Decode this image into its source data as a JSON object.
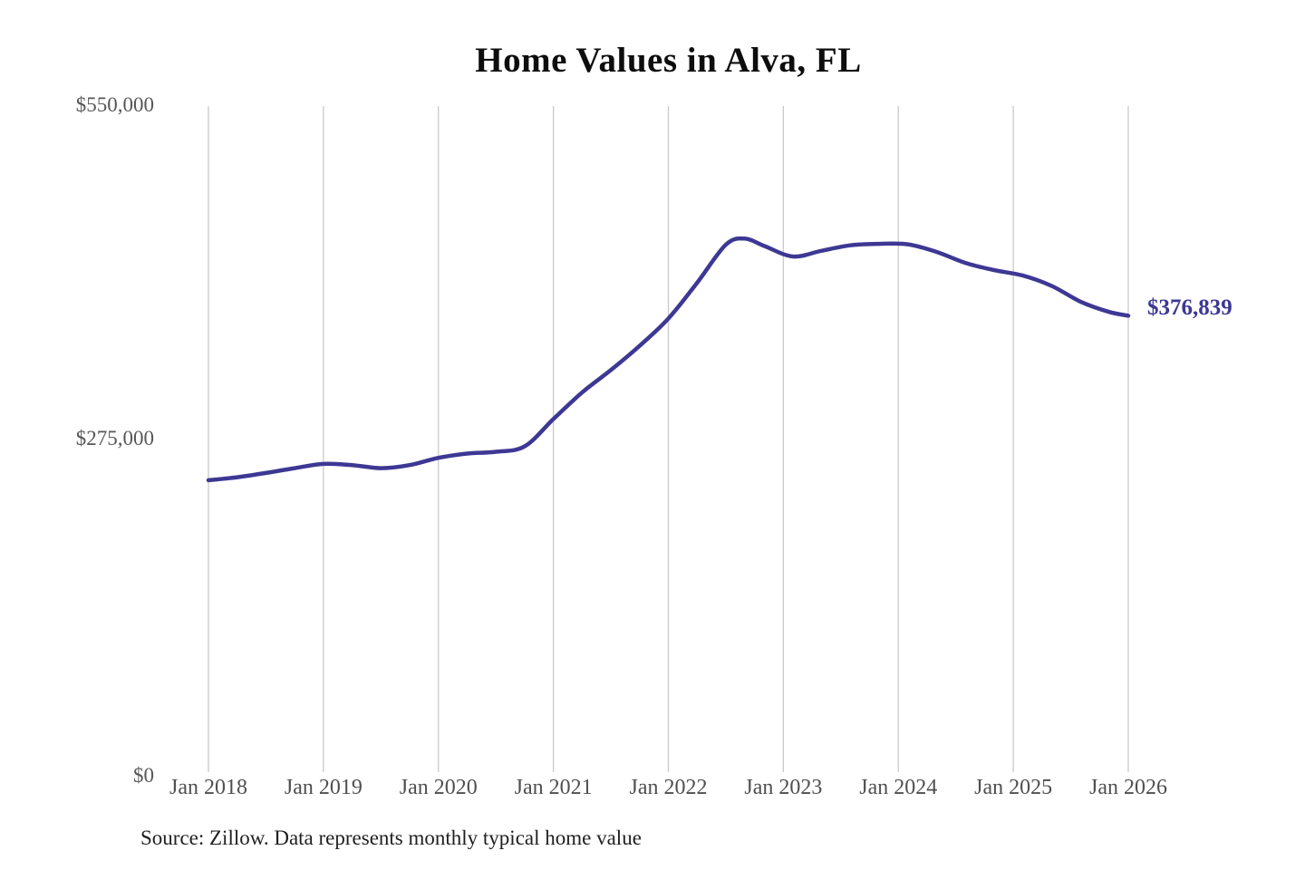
{
  "title": "Home Values in Alva, FL",
  "source_note": "Source: Zillow. Data represents monthly typical home value",
  "latest_value_label": "$376,839",
  "colors": {
    "line": "#3d3894",
    "grid": "#c9c9c9",
    "y_axis_text": "#575757",
    "x_axis_text": "#4f4f4f",
    "title_text": "#0d0d0d",
    "source_text": "#1f1f1f",
    "latest_value_text": "#3d3894"
  },
  "y_axis": {
    "ticks": [
      {
        "label": "$550,000",
        "value": 550000
      },
      {
        "label": "$275,000",
        "value": 275000
      },
      {
        "label": "$0",
        "value": 0
      }
    ]
  },
  "x_axis": {
    "ticks": [
      {
        "label": "Jan 2018",
        "month": 0
      },
      {
        "label": "Jan 2019",
        "month": 12
      },
      {
        "label": "Jan 2020",
        "month": 24
      },
      {
        "label": "Jan 2021",
        "month": 36
      },
      {
        "label": "Jan 2022",
        "month": 48
      },
      {
        "label": "Jan 2023",
        "month": 60
      },
      {
        "label": "Jan 2024",
        "month": 72
      },
      {
        "label": "Jan 2025",
        "month": 84
      },
      {
        "label": "Jan 2026",
        "month": 96
      }
    ]
  },
  "chart_data": {
    "type": "line",
    "title": "Home Values in Alva, FL",
    "series_name": "Typical home value (USD)",
    "x_unit": "months since Jan 2018",
    "xlim_months": [
      0,
      96
    ],
    "ylim": [
      0,
      550000
    ],
    "grid": "vertical-yearly-only",
    "legend": "none",
    "latest_value": 376839,
    "points": [
      [
        0,
        241000
      ],
      [
        3,
        243500
      ],
      [
        6,
        247000
      ],
      [
        9,
        251000
      ],
      [
        12,
        254500
      ],
      [
        15,
        253500
      ],
      [
        18,
        251000
      ],
      [
        21,
        253500
      ],
      [
        24,
        259500
      ],
      [
        27,
        263000
      ],
      [
        30,
        264500
      ],
      [
        33,
        269000
      ],
      [
        36,
        291500
      ],
      [
        39,
        313500
      ],
      [
        42,
        332000
      ],
      [
        45,
        352000
      ],
      [
        48,
        374500
      ],
      [
        51,
        404000
      ],
      [
        54,
        435500
      ],
      [
        56,
        440500
      ],
      [
        58,
        434500
      ],
      [
        61,
        425800
      ],
      [
        64,
        430500
      ],
      [
        67,
        435000
      ],
      [
        70,
        436200
      ],
      [
        73,
        435800
      ],
      [
        76,
        429500
      ],
      [
        79,
        420500
      ],
      [
        82,
        414500
      ],
      [
        85,
        410000
      ],
      [
        88,
        401500
      ],
      [
        91,
        388500
      ],
      [
        94,
        380000
      ],
      [
        96,
        376839
      ]
    ]
  }
}
